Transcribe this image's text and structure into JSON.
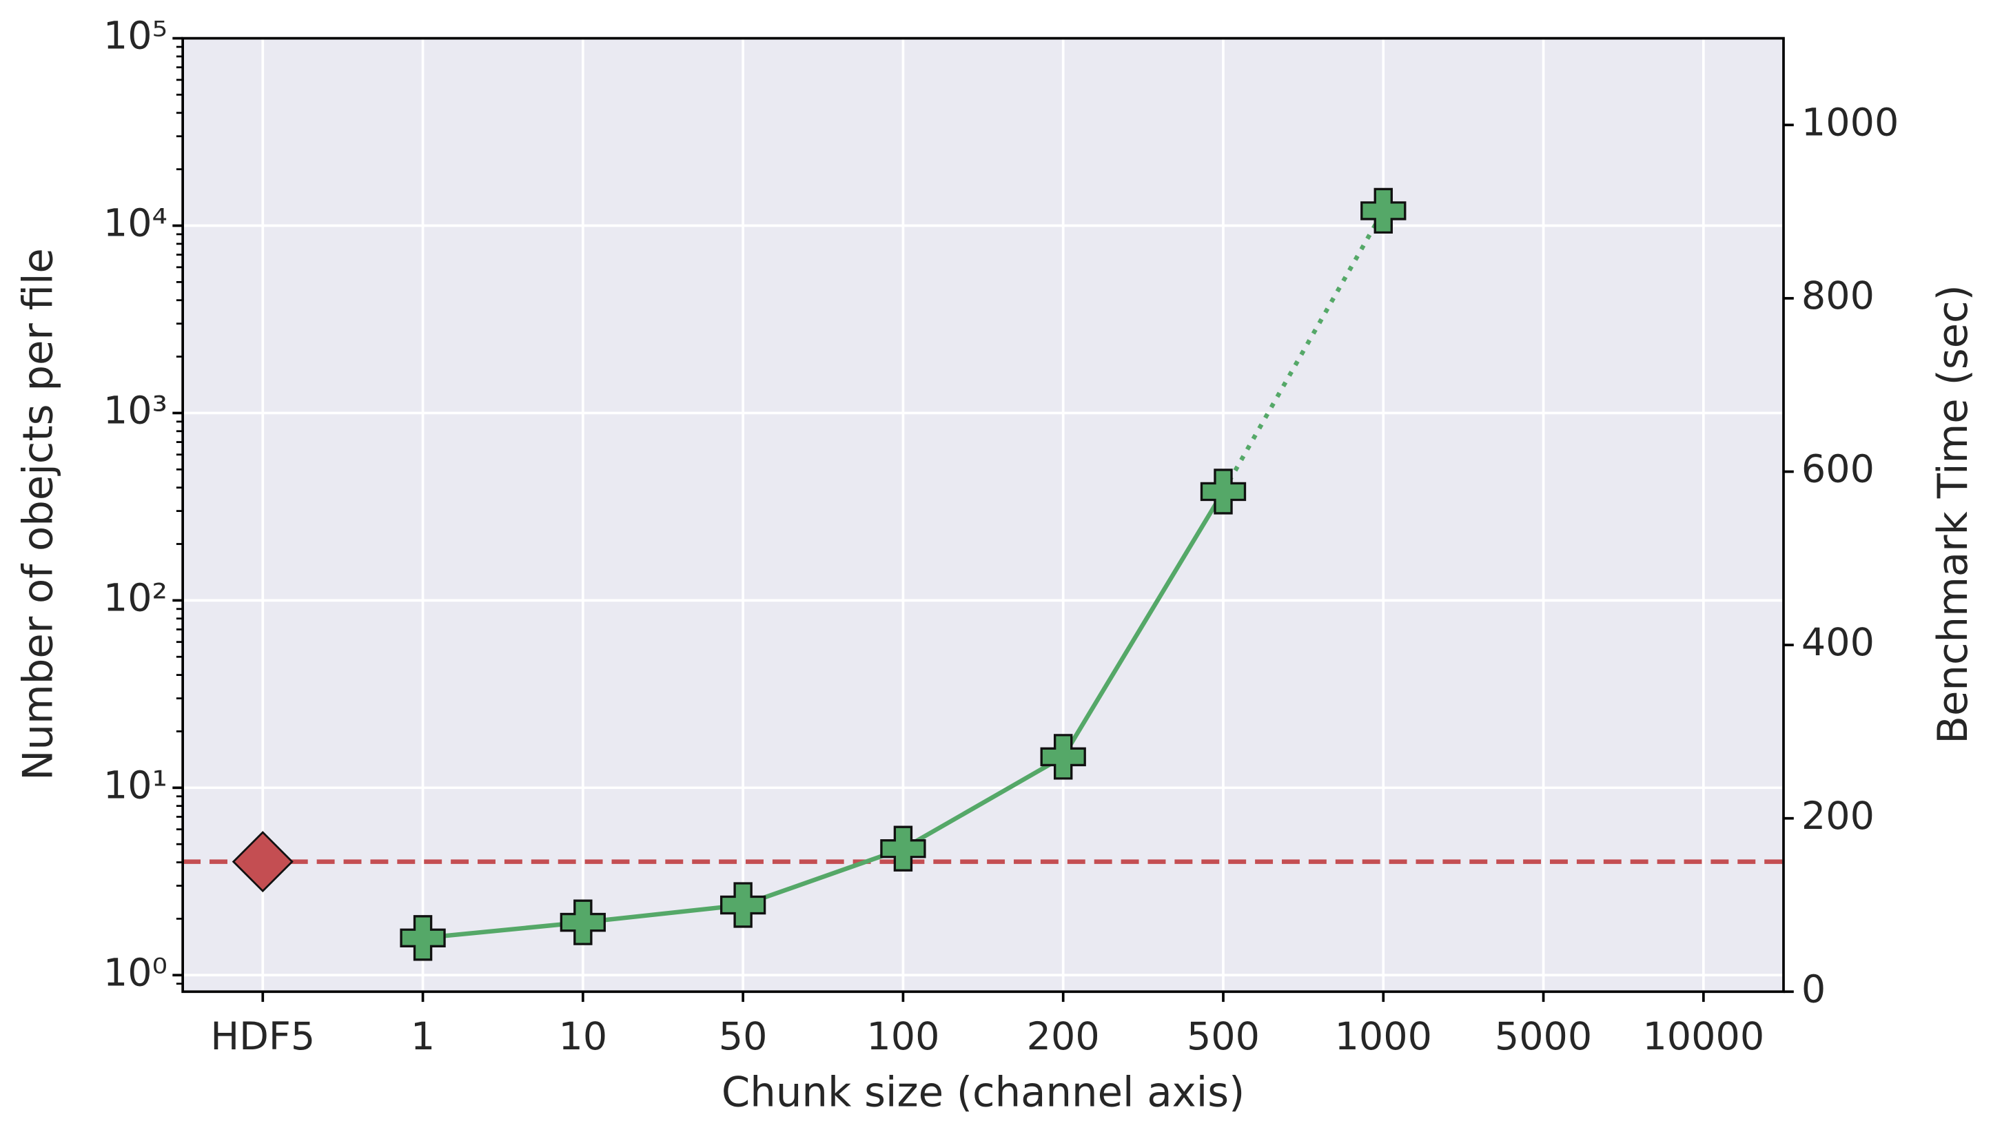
{
  "chart_data": {
    "type": "line",
    "xlabel": "Chunk size (channel axis)",
    "ylabel": "Number of obejcts per file",
    "y2label": "Benchmark Time (sec)",
    "categories": [
      "HDF5",
      "1",
      "10",
      "50",
      "100",
      "200",
      "500",
      "1000",
      "5000",
      "10000"
    ],
    "ylim": [
      0.816,
      100000
    ],
    "yscale": "log",
    "yticks": [
      {
        "value": 1,
        "label": "10⁰"
      },
      {
        "value": 10,
        "label": "10¹"
      },
      {
        "value": 100,
        "label": "10²"
      },
      {
        "value": 1000,
        "label": "10³"
      },
      {
        "value": 10000,
        "label": "10⁴"
      },
      {
        "value": 100000,
        "label": "10⁵"
      }
    ],
    "y2lim": [
      0,
      1100
    ],
    "y2ticks": [
      0,
      200,
      400,
      600,
      800,
      1000
    ],
    "grid": true,
    "series": [
      {
        "color": "#c44e52",
        "axis": "y2",
        "marker": "diamond",
        "hline": true,
        "values": [
          150,
          null,
          null,
          null,
          null,
          null,
          null,
          null,
          null,
          null
        ]
      },
      {
        "color": "#55a868",
        "axis": "y2",
        "marker": "plus",
        "dotted_last_segment": true,
        "values": [
          null,
          62,
          80,
          100,
          165,
          271,
          577,
          901,
          null,
          null
        ]
      }
    ]
  }
}
